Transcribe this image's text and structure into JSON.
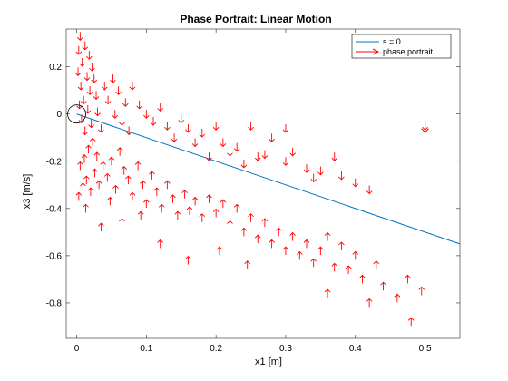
{
  "chart_data": {
    "type": "quiver",
    "title": "Phase Portrait: Linear Motion",
    "xlabel": "x1 [m]",
    "ylabel": "x3 [m/s]",
    "xlim": [
      -0.015,
      0.55
    ],
    "ylim": [
      -0.95,
      0.36
    ],
    "xticks": [
      0,
      0.1,
      0.2,
      0.3,
      0.4,
      0.5
    ],
    "xtick_labels": [
      "0",
      "0.1",
      "0.2",
      "0.3",
      "0.4",
      "0.5"
    ],
    "yticks": [
      0.2,
      0,
      -0.2,
      -0.4,
      -0.6,
      -0.8
    ],
    "ytick_labels": [
      "0.2",
      "0",
      "-0.2",
      "-0.4",
      "-0.6",
      "-0.8"
    ],
    "grid": false,
    "legend": {
      "placement": "top-right",
      "entries": [
        {
          "label": "s = 0",
          "color": "#0072BD",
          "style": "line"
        },
        {
          "label": "phase portrait",
          "color": "#FF0000",
          "style": "arrow"
        }
      ]
    },
    "series": [
      {
        "name": "s = 0",
        "type": "line",
        "color": "#0072BD",
        "x": [
          0,
          0.55
        ],
        "y": [
          0,
          -0.55
        ]
      },
      {
        "name": "phase portrait",
        "type": "quiver",
        "color": "#FF0000",
        "points": [
          [
            0.005,
            0.33,
            -1
          ],
          [
            0.012,
            0.29,
            -1
          ],
          [
            0.003,
            0.27,
            -1
          ],
          [
            0.018,
            0.25,
            -1
          ],
          [
            0.008,
            0.22,
            -1
          ],
          [
            0.022,
            0.2,
            -1
          ],
          [
            0.002,
            0.18,
            -1
          ],
          [
            0.015,
            0.16,
            -1
          ],
          [
            0.025,
            0.15,
            -1
          ],
          [
            0.006,
            0.12,
            -1
          ],
          [
            0.019,
            0.1,
            -1
          ],
          [
            0.028,
            0.08,
            -1
          ],
          [
            0.01,
            0.06,
            -1
          ],
          [
            0.004,
            0.04,
            -1
          ],
          [
            0.016,
            0.02,
            -1
          ],
          [
            0.03,
            0.01,
            -1
          ],
          [
            0.007,
            -0.02,
            -1
          ],
          [
            0.021,
            -0.04,
            -1
          ],
          [
            0.012,
            -0.07,
            -1
          ],
          [
            0.035,
            -0.06,
            -1
          ],
          [
            0.04,
            0.12,
            -1
          ],
          [
            0.045,
            0.06,
            -1
          ],
          [
            0.052,
            0.15,
            -1
          ],
          [
            0.06,
            0.1,
            -1
          ],
          [
            0.07,
            0.05,
            -1
          ],
          [
            0.08,
            0.12,
            -1
          ],
          [
            0.09,
            0.04,
            -1
          ],
          [
            0.055,
            0.0,
            -1
          ],
          [
            0.065,
            -0.03,
            -1
          ],
          [
            0.075,
            -0.07,
            -1
          ],
          [
            0.1,
            0.0,
            -1
          ],
          [
            0.11,
            -0.03,
            -1
          ],
          [
            0.12,
            0.03,
            -1
          ],
          [
            0.13,
            -0.05,
            -1
          ],
          [
            0.15,
            -0.02,
            -1
          ],
          [
            0.14,
            -0.1,
            -1
          ],
          [
            0.16,
            -0.06,
            -1
          ],
          [
            0.17,
            -0.12,
            -1
          ],
          [
            0.18,
            -0.08,
            -1
          ],
          [
            0.2,
            -0.05,
            -1
          ],
          [
            0.21,
            -0.12,
            -1
          ],
          [
            0.23,
            -0.14,
            -1
          ],
          [
            0.25,
            -0.05,
            -1
          ],
          [
            0.27,
            -0.17,
            -1
          ],
          [
            0.28,
            -0.1,
            -1
          ],
          [
            0.3,
            -0.2,
            -1
          ],
          [
            0.31,
            -0.16,
            -1
          ],
          [
            0.33,
            -0.23,
            -1
          ],
          [
            0.35,
            -0.24,
            -1
          ],
          [
            0.37,
            -0.18,
            -1
          ],
          [
            0.38,
            -0.26,
            -1
          ],
          [
            0.4,
            -0.29,
            -1
          ],
          [
            0.42,
            -0.32,
            -1
          ],
          [
            0.3,
            -0.06,
            -1
          ],
          [
            0.26,
            -0.18,
            -1
          ],
          [
            0.24,
            -0.21,
            -1
          ],
          [
            0.22,
            -0.16,
            -1
          ],
          [
            0.19,
            -0.18,
            -1
          ],
          [
            0.34,
            -0.27,
            -1
          ],
          [
            0.5,
            -0.05,
            -1
          ],
          [
            0.003,
            -0.35,
            1
          ],
          [
            0.009,
            -0.31,
            1
          ],
          [
            0.014,
            -0.28,
            1
          ],
          [
            0.02,
            -0.33,
            1
          ],
          [
            0.026,
            -0.25,
            1
          ],
          [
            0.032,
            -0.3,
            1
          ],
          [
            0.005,
            -0.22,
            1
          ],
          [
            0.011,
            -0.19,
            1
          ],
          [
            0.017,
            -0.15,
            1
          ],
          [
            0.023,
            -0.12,
            1
          ],
          [
            0.029,
            -0.18,
            1
          ],
          [
            0.038,
            -0.22,
            1
          ],
          [
            0.044,
            -0.27,
            1
          ],
          [
            0.05,
            -0.2,
            1
          ],
          [
            0.056,
            -0.32,
            1
          ],
          [
            0.062,
            -0.16,
            1
          ],
          [
            0.068,
            -0.24,
            1
          ],
          [
            0.074,
            -0.28,
            1
          ],
          [
            0.08,
            -0.35,
            1
          ],
          [
            0.088,
            -0.22,
            1
          ],
          [
            0.095,
            -0.3,
            1
          ],
          [
            0.1,
            -0.38,
            1
          ],
          [
            0.108,
            -0.26,
            1
          ],
          [
            0.115,
            -0.33,
            1
          ],
          [
            0.122,
            -0.4,
            1
          ],
          [
            0.13,
            -0.3,
            1
          ],
          [
            0.138,
            -0.36,
            1
          ],
          [
            0.145,
            -0.43,
            1
          ],
          [
            0.155,
            -0.34,
            1
          ],
          [
            0.162,
            -0.41,
            1
          ],
          [
            0.17,
            -0.37,
            1
          ],
          [
            0.18,
            -0.44,
            1
          ],
          [
            0.19,
            -0.36,
            1
          ],
          [
            0.2,
            -0.42,
            1
          ],
          [
            0.21,
            -0.38,
            1
          ],
          [
            0.22,
            -0.47,
            1
          ],
          [
            0.23,
            -0.4,
            1
          ],
          [
            0.24,
            -0.5,
            1
          ],
          [
            0.25,
            -0.44,
            1
          ],
          [
            0.26,
            -0.53,
            1
          ],
          [
            0.27,
            -0.46,
            1
          ],
          [
            0.28,
            -0.55,
            1
          ],
          [
            0.29,
            -0.5,
            1
          ],
          [
            0.3,
            -0.58,
            1
          ],
          [
            0.31,
            -0.52,
            1
          ],
          [
            0.32,
            -0.6,
            1
          ],
          [
            0.33,
            -0.55,
            1
          ],
          [
            0.34,
            -0.63,
            1
          ],
          [
            0.35,
            -0.58,
            1
          ],
          [
            0.36,
            -0.52,
            1
          ],
          [
            0.37,
            -0.65,
            1
          ],
          [
            0.38,
            -0.56,
            1
          ],
          [
            0.39,
            -0.66,
            1
          ],
          [
            0.4,
            -0.6,
            1
          ],
          [
            0.41,
            -0.7,
            1
          ],
          [
            0.43,
            -0.64,
            1
          ],
          [
            0.44,
            -0.73,
            1
          ],
          [
            0.46,
            -0.78,
            1
          ],
          [
            0.475,
            -0.7,
            1
          ],
          [
            0.035,
            -0.48,
            1
          ],
          [
            0.065,
            -0.46,
            1
          ],
          [
            0.12,
            -0.55,
            1
          ],
          [
            0.16,
            -0.62,
            1
          ],
          [
            0.205,
            -0.58,
            1
          ],
          [
            0.245,
            -0.64,
            1
          ],
          [
            0.36,
            -0.76,
            1
          ],
          [
            0.42,
            -0.8,
            1
          ],
          [
            0.495,
            -0.75,
            1
          ],
          [
            0.48,
            -0.88,
            1
          ],
          [
            0.013,
            -0.4,
            1
          ],
          [
            0.048,
            -0.37,
            1
          ],
          [
            0.092,
            -0.43,
            1
          ]
        ]
      }
    ],
    "annotations": [
      {
        "type": "circle",
        "x": 0,
        "y": 0,
        "r": 0.012,
        "color": "#000000"
      }
    ]
  }
}
